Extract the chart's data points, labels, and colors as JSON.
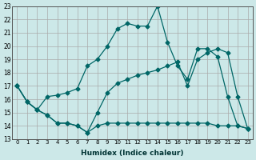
{
  "xlabel": "Humidex (Indice chaleur)",
  "bg_color": "#cce8e8",
  "grid_color": "#aaaaaa",
  "line_color": "#006666",
  "xlim": [
    -0.5,
    23.5
  ],
  "ylim": [
    13,
    23
  ],
  "yticks": [
    13,
    14,
    15,
    16,
    17,
    18,
    19,
    20,
    21,
    22,
    23
  ],
  "xticks": [
    0,
    1,
    2,
    3,
    4,
    5,
    6,
    7,
    8,
    9,
    10,
    11,
    12,
    13,
    14,
    15,
    16,
    17,
    18,
    19,
    20,
    21,
    22,
    23
  ],
  "line1_x": [
    0,
    1,
    2,
    3,
    4,
    5,
    6,
    7,
    8,
    9,
    10,
    11,
    12,
    13,
    14,
    15,
    16,
    17,
    18,
    19,
    20,
    21,
    22,
    23
  ],
  "line1_y": [
    17.0,
    15.8,
    15.2,
    14.8,
    14.2,
    14.2,
    14.0,
    13.5,
    14.0,
    14.2,
    14.2,
    14.2,
    14.2,
    14.2,
    14.2,
    14.2,
    14.2,
    14.2,
    14.2,
    14.2,
    14.0,
    14.0,
    14.0,
    13.8
  ],
  "line2_x": [
    0,
    1,
    2,
    3,
    4,
    5,
    6,
    7,
    8,
    9,
    10,
    11,
    12,
    13,
    14,
    15,
    16,
    17,
    18,
    19,
    20,
    21,
    22,
    23
  ],
  "line2_y": [
    17.0,
    15.8,
    15.2,
    16.2,
    16.3,
    16.5,
    16.8,
    18.5,
    19.0,
    20.0,
    21.3,
    21.7,
    21.5,
    21.5,
    23.0,
    20.3,
    18.5,
    17.5,
    19.8,
    19.8,
    19.2,
    16.2,
    14.0,
    13.8
  ],
  "line3_x": [
    0,
    1,
    2,
    3,
    4,
    5,
    6,
    7,
    8,
    9,
    10,
    11,
    12,
    13,
    14,
    15,
    16,
    17,
    18,
    19,
    20,
    21,
    22,
    23
  ],
  "line3_y": [
    17.0,
    15.8,
    15.2,
    14.8,
    14.2,
    14.2,
    14.0,
    13.5,
    15.0,
    16.5,
    17.2,
    17.5,
    17.8,
    18.0,
    18.2,
    18.5,
    18.8,
    17.0,
    19.0,
    19.5,
    19.8,
    19.5,
    16.2,
    13.8
  ]
}
